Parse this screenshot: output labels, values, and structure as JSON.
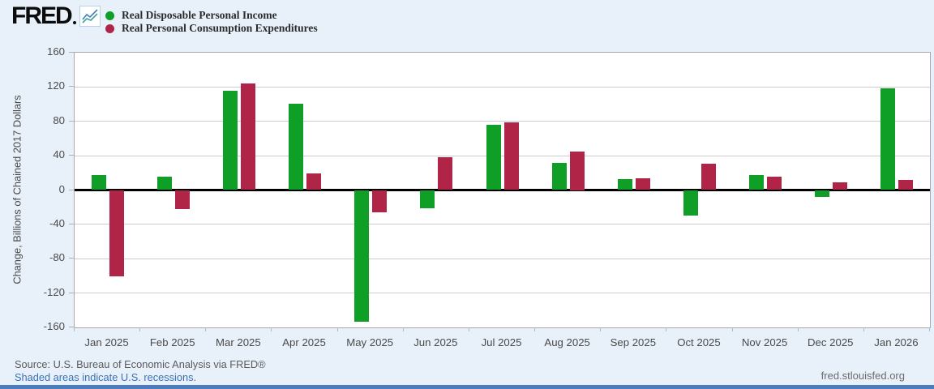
{
  "header": {
    "logo_text": "FRED",
    "logo_icon": "line-chart-sparkline-icon",
    "legend": [
      {
        "label": "Real Disposable Personal Income",
        "color": "#0f9e26"
      },
      {
        "label": "Real Personal Consumption Expenditures",
        "color": "#b02447"
      }
    ]
  },
  "chart_data": {
    "type": "bar",
    "title": "",
    "xlabel": "",
    "ylabel": "Change, Billions of Chained 2017 Dollars",
    "ylim": [
      -160,
      160
    ],
    "ytick_step": 40,
    "grid": true,
    "legend_position": "top-left",
    "categories": [
      "Jan 2025",
      "Feb 2025",
      "Mar 2025",
      "Apr 2025",
      "May 2025",
      "Jun 2025",
      "Jul 2025",
      "Aug 2025",
      "Sep 2025",
      "Oct 2025",
      "Nov 2025",
      "Dec 2025",
      "Jan 2026"
    ],
    "series": [
      {
        "name": "Real Disposable Personal Income",
        "color": "#0f9e26",
        "values": [
          17,
          16,
          116,
          101,
          -153,
          -21,
          76,
          32,
          13,
          -30,
          17,
          -8,
          118
        ]
      },
      {
        "name": "Real Personal Consumption Expenditures",
        "color": "#b02447",
        "values": [
          -101,
          -22,
          124,
          19,
          -26,
          38,
          79,
          45,
          14,
          31,
          16,
          9,
          12
        ]
      }
    ]
  },
  "footer": {
    "source_text": "Source: U.S. Bureau of Economic Analysis via FRED®",
    "recession_note": "Shaded areas indicate U.S. recessions.",
    "site_link": "fred.stlouisfed.org"
  },
  "colors": {
    "page_background": "#e8f1fa",
    "plot_background": "#ffffff",
    "plot_border": "#a9a9a9",
    "gridline": "#cccccc",
    "zero_line": "#000000",
    "link_blue": "#3a70b7",
    "bottom_bar_blue": "#4a7cbe"
  }
}
